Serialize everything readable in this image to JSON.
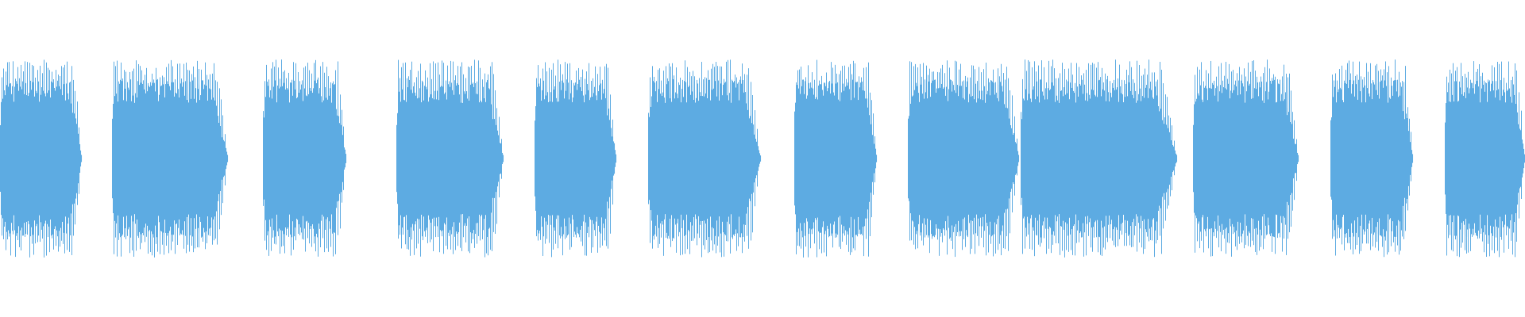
{
  "waveform": {
    "color": "#5dabe2",
    "background": "#ffffff",
    "segment_count": 12
  }
}
